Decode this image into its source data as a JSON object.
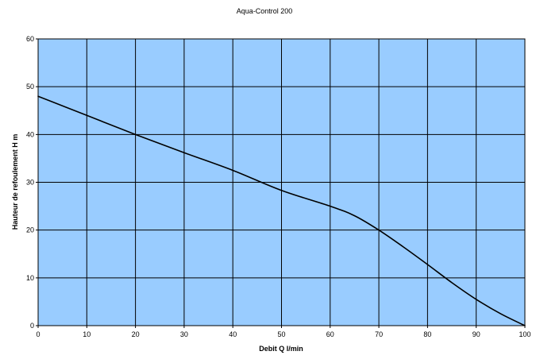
{
  "chart_data": {
    "type": "line",
    "title": "Aqua-Control 200",
    "xlabel": "Debit Q l/min",
    "ylabel": "Hauteur de refoulement H m",
    "xlim": [
      0,
      100
    ],
    "ylim": [
      0,
      60
    ],
    "xticks": [
      0,
      10,
      20,
      30,
      40,
      50,
      60,
      70,
      80,
      90,
      100
    ],
    "yticks": [
      0,
      10,
      20,
      30,
      40,
      50,
      60
    ],
    "grid": true,
    "legend": "none",
    "colors": {
      "plot_background": "#99CCFF",
      "grid": "#000000",
      "line": "#000000"
    },
    "series": [
      {
        "x": [
          0,
          10,
          20,
          30,
          40,
          50,
          60,
          65,
          70,
          75,
          80,
          85,
          90,
          95,
          100
        ],
        "y": [
          48,
          44,
          40,
          36.2,
          32.5,
          28.3,
          25,
          23,
          20,
          16.5,
          12.8,
          9,
          5.5,
          2.5,
          0
        ]
      }
    ]
  }
}
